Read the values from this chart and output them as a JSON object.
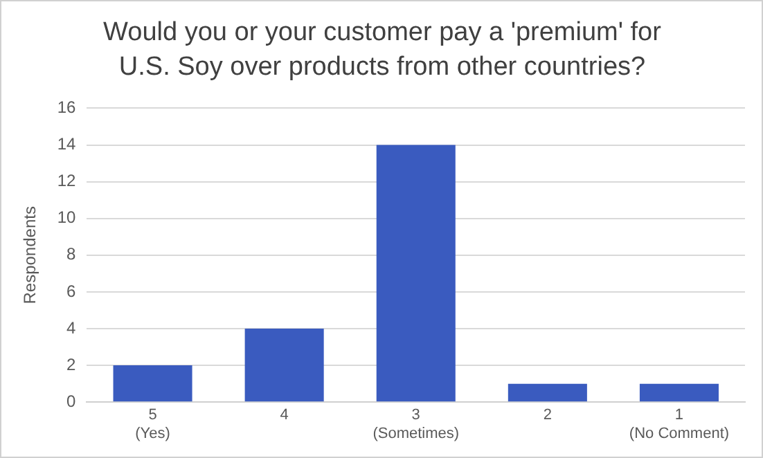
{
  "chart_data": {
    "type": "bar",
    "title": "Would you or your customer pay a 'premium' for U.S. Soy over products from other countries?",
    "ylabel": "Respondents",
    "categories": [
      "5 (Yes)",
      "4",
      "3 (Sometimes)",
      "2",
      "1 (No Comment)"
    ],
    "values": [
      2,
      4,
      14,
      1,
      1
    ],
    "color": "#3a5bbf",
    "ylim": [
      0,
      16
    ],
    "yticks": [
      0,
      2,
      4,
      6,
      8,
      10,
      12,
      14,
      16
    ],
    "grid": "y",
    "legend": false
  }
}
